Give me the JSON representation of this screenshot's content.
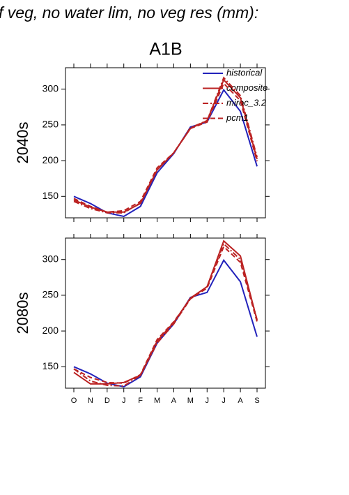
{
  "title": "f veg, no water lim, no veg res (mm):",
  "subtitle": "A1B",
  "chart_data": [
    {
      "type": "line",
      "ylabel": "2040s",
      "categories": [
        "O",
        "N",
        "D",
        "J",
        "F",
        "M",
        "A",
        "M",
        "J",
        "J",
        "A",
        "S"
      ],
      "xtick_labels": false,
      "legend": "upper right",
      "ylim": [
        120,
        330
      ],
      "yticks": [
        150,
        200,
        250,
        300
      ],
      "series": [
        {
          "name": "historical",
          "color": "#2222bb",
          "linestyle": "solid",
          "values": [
            150,
            140,
            127,
            122,
            136,
            183,
            210,
            247,
            254,
            299,
            269,
            192
          ]
        },
        {
          "name": "composite",
          "color": "#bb2222",
          "linestyle": "solid",
          "values": [
            145,
            135,
            128,
            128,
            140,
            187,
            211,
            245,
            256,
            313,
            288,
            202
          ]
        },
        {
          "name": "miroc_3.2",
          "color": "#bb2222",
          "linestyle": "dashdot",
          "values": [
            143,
            133,
            127,
            127,
            141,
            188,
            211,
            246,
            256,
            316,
            291,
            205
          ]
        },
        {
          "name": "pcm1",
          "color": "#bb2222",
          "linestyle": "dashed",
          "values": [
            147,
            136,
            128,
            130,
            143,
            190,
            211,
            245,
            254,
            308,
            284,
            199
          ]
        }
      ]
    },
    {
      "type": "line",
      "ylabel": "2080s",
      "categories": [
        "O",
        "N",
        "D",
        "J",
        "F",
        "M",
        "A",
        "M",
        "J",
        "J",
        "A",
        "S"
      ],
      "xtick_labels": true,
      "ylim": [
        120,
        330
      ],
      "yticks": [
        150,
        200,
        250,
        300
      ],
      "series": [
        {
          "name": "historical",
          "color": "#2222bb",
          "linestyle": "solid",
          "values": [
            150,
            140,
            127,
            122,
            136,
            183,
            210,
            247,
            254,
            299,
            269,
            192
          ]
        },
        {
          "name": "composite",
          "color": "#bb2222",
          "linestyle": "solid",
          "values": [
            142,
            126,
            126,
            128,
            138,
            186,
            212,
            246,
            262,
            326,
            305,
            215
          ]
        },
        {
          "name": "miroc_3.2",
          "color": "#bb2222",
          "linestyle": "dashdot",
          "values": [
            147,
            130,
            124,
            123,
            138,
            183,
            210,
            245,
            262,
            322,
            300,
            216
          ]
        },
        {
          "name": "pcm1",
          "color": "#bb2222",
          "linestyle": "dashed",
          "values": [
            147,
            135,
            128,
            127,
            139,
            188,
            213,
            245,
            260,
            318,
            296,
            213
          ]
        }
      ]
    }
  ]
}
